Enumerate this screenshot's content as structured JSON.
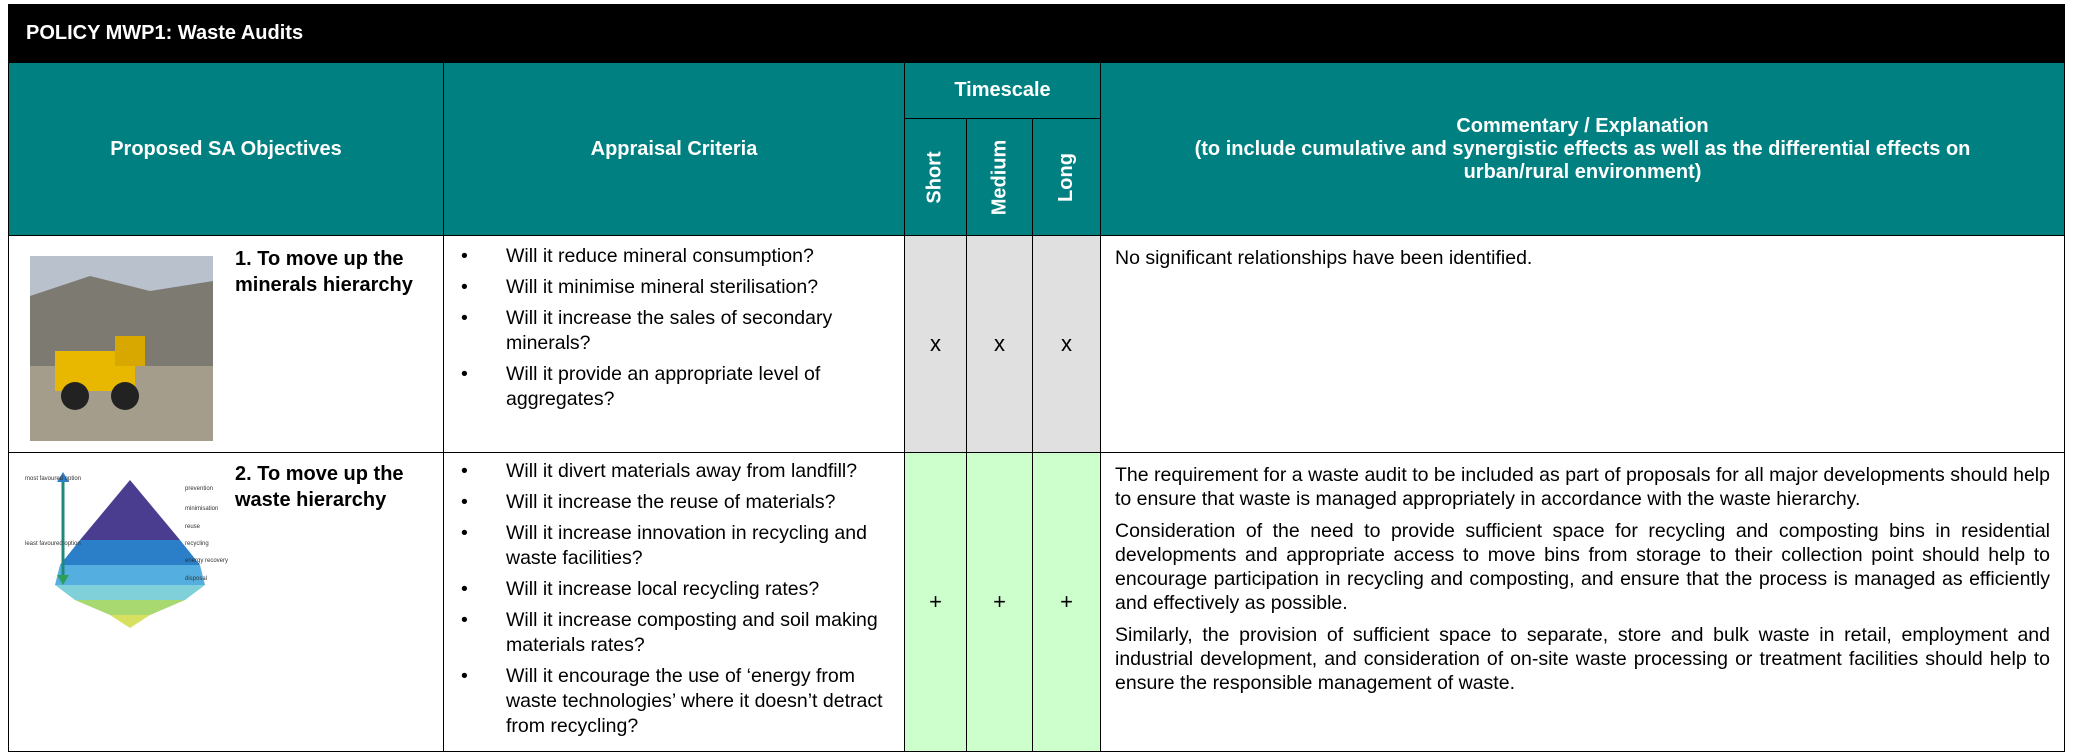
{
  "header": {
    "title": "POLICY MWP1: Waste Audits"
  },
  "table": {
    "columns": {
      "objectives": "Proposed SA Objectives",
      "criteria": "Appraisal Criteria",
      "timescale": "Timescale",
      "short": "Short",
      "medium": "Medium",
      "long": "Long",
      "commentary": "Commentary / Explanation",
      "commentary_note": "(to include cumulative and synergistic effects as well as the differential effects on urban/rural environment)"
    },
    "rows": [
      {
        "objective": "1. To move up the minerals hierarchy",
        "criteria": [
          "Will it reduce mineral consumption?",
          "Will it minimise mineral sterilisation?",
          "Will it increase the sales of secondary minerals?",
          "Will it provide an appropriate level of aggregates?"
        ],
        "short": "x",
        "medium": "x",
        "long": "x",
        "commentary": [
          "No significant relationships have been identified."
        ]
      },
      {
        "objective": "2. To move up the waste hierarchy",
        "image_labels": [
          "most favoured option",
          "least favoured option",
          "prevention",
          "minimisation",
          "reuse",
          "recycling",
          "energy recovery",
          "disposal"
        ],
        "criteria": [
          "Will it divert materials away from landfill?",
          "Will it increase the reuse of materials?",
          "Will it increase innovation in recycling and waste facilities?",
          "Will it increase local recycling rates?",
          "Will it increase composting and soil making materials rates?",
          "Will it encourage the use of ‘energy from waste technologies’ where it doesn’t detract from recycling?"
        ],
        "short": "+",
        "medium": "+",
        "long": "+",
        "commentary": [
          "The requirement for a waste audit to be included as part of proposals for all major developments should help to ensure that waste is managed appropriately in accordance with the waste hierarchy.",
          "Consideration of the need to provide sufficient space for recycling and composting bins in residential developments and appropriate access to move bins from storage to their collection point should help to encourage participation in recycling and composting, and ensure that the process is managed as efficiently and effectively as possible.",
          "Similarly, the provision of sufficient space to separate, store and bulk waste in retail, employment and industrial development, and consideration of on-site waste processing or treatment facilities should help to ensure the responsible management of waste."
        ]
      }
    ]
  }
}
